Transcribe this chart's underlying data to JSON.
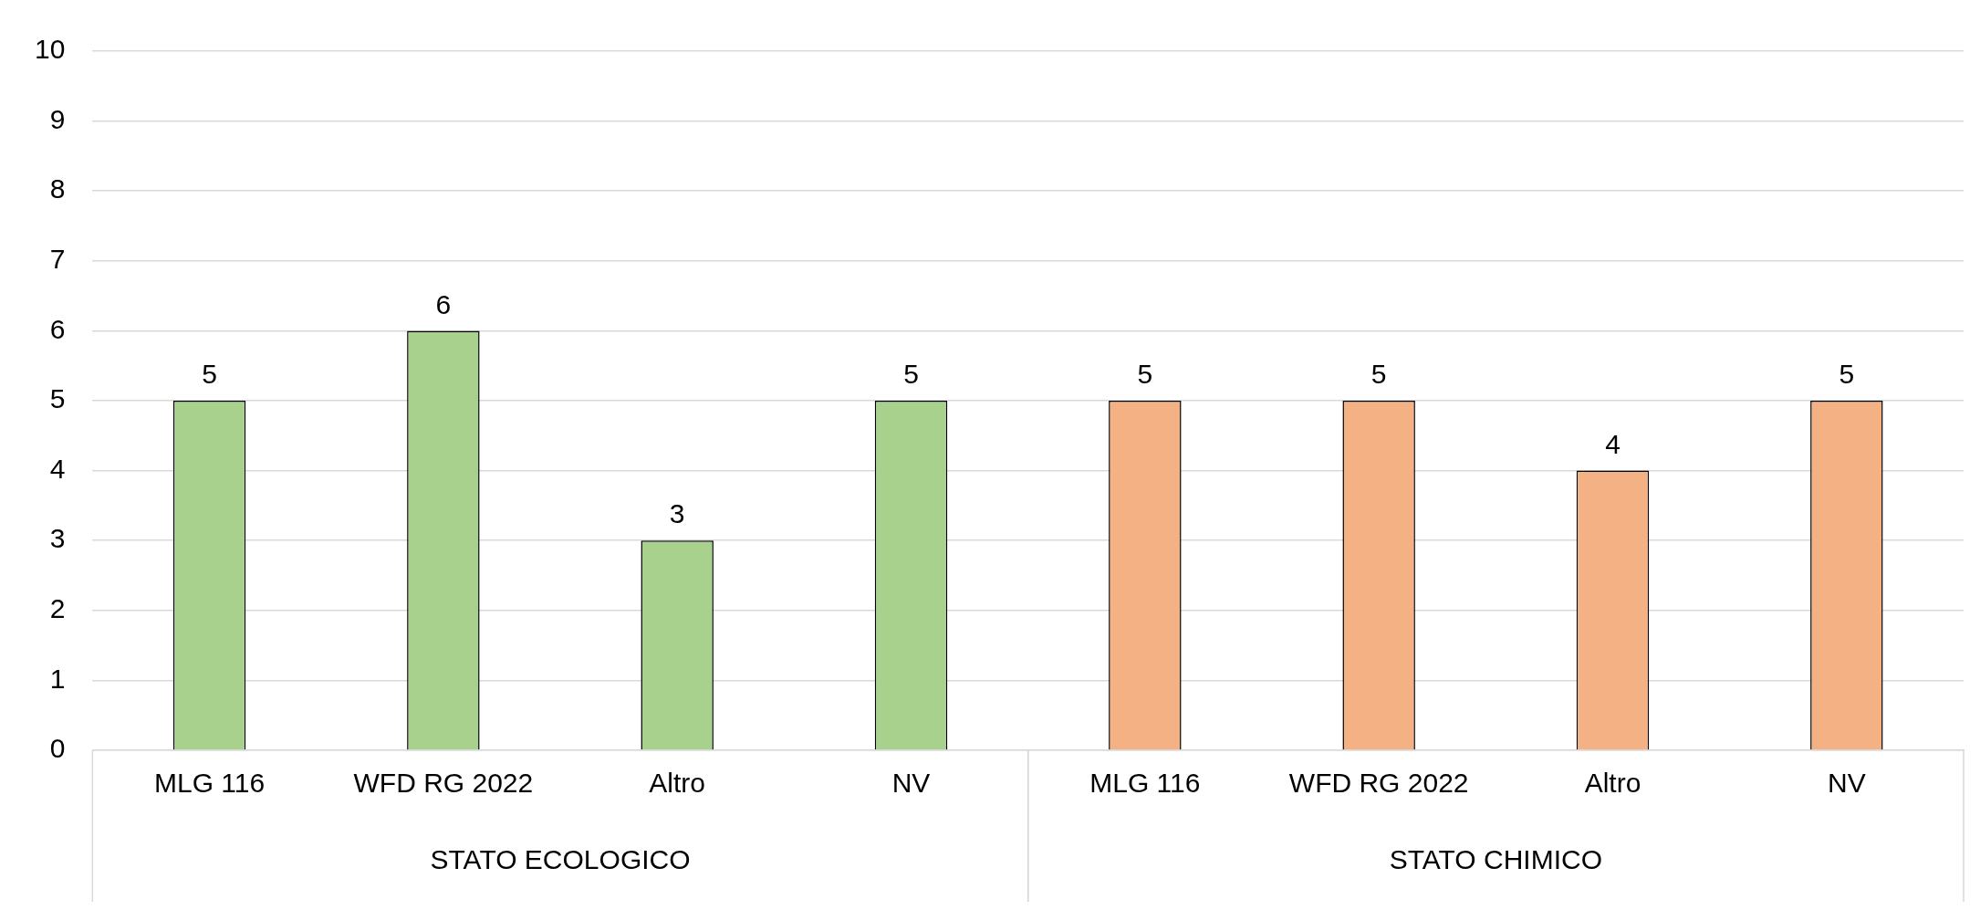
{
  "chart_data": {
    "type": "bar",
    "categories": [
      "MLG 116",
      "WFD RG 2022",
      "Altro",
      "NV",
      "MLG 116",
      "WFD RG 2022",
      "Altro",
      "NV"
    ],
    "values": [
      5,
      6,
      3,
      5,
      5,
      5,
      4,
      5
    ],
    "colors": [
      "#a9d18e",
      "#a9d18e",
      "#a9d18e",
      "#a9d18e",
      "#f4b183",
      "#f4b183",
      "#f4b183",
      "#f4b183"
    ],
    "annotations": [
      "STATO ECOLOGICO",
      "STATO CHIMICO"
    ],
    "ylim": [
      0,
      10
    ],
    "yticks": [
      0,
      1,
      2,
      3,
      4,
      5,
      6,
      7,
      8,
      9,
      10
    ],
    "grid": "y",
    "data_labels": true,
    "legend": false
  }
}
